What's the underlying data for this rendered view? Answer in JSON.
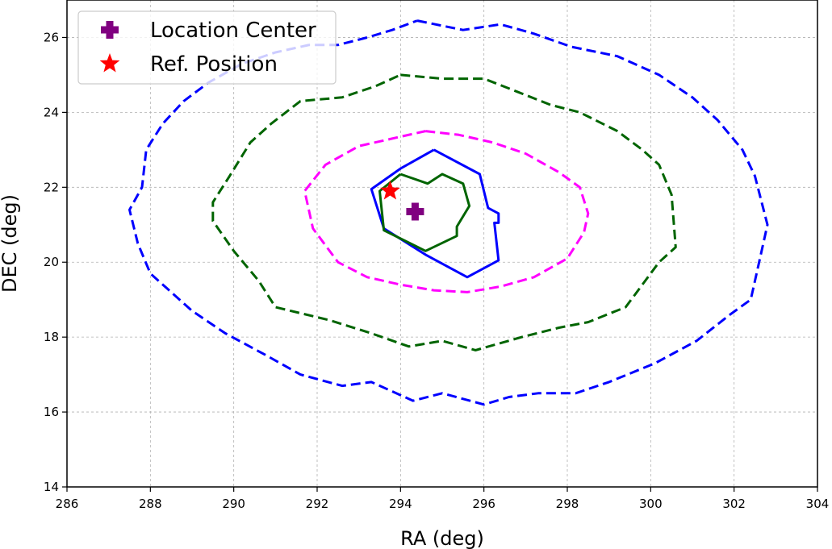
{
  "chart_data": {
    "type": "line",
    "title": "",
    "xlabel": "RA (deg)",
    "ylabel": "DEC (deg)",
    "xlim": [
      286,
      304
    ],
    "ylim": [
      14,
      27
    ],
    "xticks": [
      "286",
      "288",
      "290",
      "292",
      "294",
      "296",
      "298",
      "300",
      "302",
      "304"
    ],
    "yticks": [
      "14",
      "16",
      "18",
      "20",
      "22",
      "24",
      "26"
    ],
    "grid": true,
    "legend": {
      "placement": "top-left",
      "entries": [
        {
          "label": "Location Center",
          "marker": "plus",
          "color": "#800080"
        },
        {
          "label": "Ref. Position",
          "marker": "star",
          "color": "#ff0000"
        }
      ]
    },
    "points": [
      {
        "name": "Location Center",
        "x": 294.35,
        "y": 21.35,
        "color": "#800080",
        "marker": "plus"
      },
      {
        "name": "Ref. Position",
        "x": 293.75,
        "y": 21.9,
        "color": "#ff0000",
        "marker": "star"
      }
    ],
    "contours": [
      {
        "color": "#0000ff",
        "style": "dashed",
        "points": [
          [
            294.4,
            26.45
          ],
          [
            295.5,
            26.2
          ],
          [
            296.4,
            26.35
          ],
          [
            297.2,
            26.1
          ],
          [
            298.1,
            25.75
          ],
          [
            299.2,
            25.5
          ],
          [
            300.2,
            25.0
          ],
          [
            301.0,
            24.4
          ],
          [
            301.6,
            23.8
          ],
          [
            302.2,
            23.0
          ],
          [
            302.5,
            22.3
          ],
          [
            302.8,
            21.0
          ],
          [
            302.6,
            20.0
          ],
          [
            302.4,
            19.0
          ],
          [
            301.9,
            18.6
          ],
          [
            301.1,
            17.9
          ],
          [
            300.1,
            17.3
          ],
          [
            299.0,
            16.8
          ],
          [
            298.2,
            16.5
          ],
          [
            297.3,
            16.5
          ],
          [
            296.6,
            16.4
          ],
          [
            296.0,
            16.2
          ],
          [
            295.0,
            16.5
          ],
          [
            294.3,
            16.3
          ],
          [
            293.3,
            16.8
          ],
          [
            292.6,
            16.7
          ],
          [
            291.6,
            17.0
          ],
          [
            290.8,
            17.5
          ],
          [
            289.8,
            18.1
          ],
          [
            289.0,
            18.7
          ],
          [
            288.4,
            19.3
          ],
          [
            288.0,
            19.7
          ],
          [
            287.7,
            20.5
          ],
          [
            287.5,
            21.4
          ],
          [
            287.8,
            22.0
          ],
          [
            287.9,
            23.0
          ],
          [
            288.3,
            23.7
          ],
          [
            288.8,
            24.3
          ],
          [
            289.4,
            24.8
          ],
          [
            290.2,
            25.3
          ],
          [
            291.0,
            25.6
          ],
          [
            291.8,
            25.8
          ],
          [
            292.5,
            25.8
          ],
          [
            293.2,
            26.0
          ],
          [
            293.8,
            26.2
          ],
          [
            294.4,
            26.45
          ]
        ]
      },
      {
        "color": "#006400",
        "style": "dashed",
        "points": [
          [
            294.0,
            25.0
          ],
          [
            295.0,
            24.9
          ],
          [
            296.0,
            24.9
          ],
          [
            296.8,
            24.55
          ],
          [
            297.6,
            24.2
          ],
          [
            298.3,
            24.0
          ],
          [
            299.2,
            23.5
          ],
          [
            299.8,
            23.0
          ],
          [
            300.2,
            22.6
          ],
          [
            300.5,
            21.8
          ],
          [
            300.6,
            20.4
          ],
          [
            300.2,
            20.0
          ],
          [
            299.8,
            19.4
          ],
          [
            299.4,
            18.8
          ],
          [
            298.5,
            18.4
          ],
          [
            297.8,
            18.25
          ],
          [
            296.9,
            18.0
          ],
          [
            295.8,
            17.65
          ],
          [
            295.0,
            17.9
          ],
          [
            294.2,
            17.75
          ],
          [
            293.3,
            18.1
          ],
          [
            292.3,
            18.45
          ],
          [
            291.0,
            18.8
          ],
          [
            290.6,
            19.5
          ],
          [
            290.0,
            20.3
          ],
          [
            289.5,
            21.1
          ],
          [
            289.5,
            21.6
          ],
          [
            289.9,
            22.3
          ],
          [
            290.4,
            23.2
          ],
          [
            290.9,
            23.7
          ],
          [
            291.6,
            24.3
          ],
          [
            292.6,
            24.4
          ],
          [
            293.4,
            24.7
          ],
          [
            294.0,
            25.0
          ]
        ]
      },
      {
        "color": "#ff00ff",
        "style": "dashed",
        "points": [
          [
            294.6,
            23.5
          ],
          [
            295.4,
            23.4
          ],
          [
            296.2,
            23.2
          ],
          [
            297.0,
            22.9
          ],
          [
            297.8,
            22.4
          ],
          [
            298.3,
            22.0
          ],
          [
            298.5,
            21.3
          ],
          [
            298.4,
            20.8
          ],
          [
            298.0,
            20.1
          ],
          [
            297.2,
            19.6
          ],
          [
            296.4,
            19.35
          ],
          [
            295.6,
            19.2
          ],
          [
            294.8,
            19.25
          ],
          [
            294.0,
            19.4
          ],
          [
            293.2,
            19.6
          ],
          [
            292.5,
            20.0
          ],
          [
            291.9,
            20.9
          ],
          [
            291.7,
            21.9
          ],
          [
            292.2,
            22.6
          ],
          [
            293.0,
            23.1
          ],
          [
            293.8,
            23.3
          ],
          [
            294.6,
            23.5
          ]
        ]
      },
      {
        "color": "#0000ff",
        "style": "solid",
        "points": [
          [
            294.8,
            23.0
          ],
          [
            295.9,
            22.35
          ],
          [
            296.1,
            21.45
          ],
          [
            296.35,
            21.3
          ],
          [
            296.35,
            21.05
          ],
          [
            296.25,
            21.05
          ],
          [
            296.35,
            20.05
          ],
          [
            295.6,
            19.6
          ],
          [
            294.6,
            20.2
          ],
          [
            293.6,
            20.9
          ],
          [
            293.3,
            21.95
          ],
          [
            294.0,
            22.5
          ],
          [
            294.8,
            23.0
          ]
        ]
      },
      {
        "color": "#006400",
        "style": "solid",
        "points": [
          [
            294.0,
            22.35
          ],
          [
            294.65,
            22.1
          ],
          [
            295.0,
            22.35
          ],
          [
            295.5,
            22.1
          ],
          [
            295.65,
            21.5
          ],
          [
            295.35,
            20.95
          ],
          [
            295.35,
            20.7
          ],
          [
            294.6,
            20.3
          ],
          [
            293.6,
            20.85
          ],
          [
            293.5,
            21.9
          ],
          [
            294.0,
            22.35
          ]
        ]
      }
    ]
  }
}
